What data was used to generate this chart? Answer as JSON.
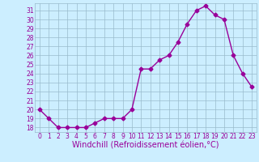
{
  "x": [
    0,
    1,
    2,
    3,
    4,
    5,
    6,
    7,
    8,
    9,
    10,
    11,
    12,
    13,
    14,
    15,
    16,
    17,
    18,
    19,
    20,
    21,
    22,
    23
  ],
  "y": [
    20,
    19,
    18,
    18,
    18,
    18,
    18.5,
    19,
    19,
    19,
    20,
    24.5,
    24.5,
    25.5,
    26,
    27.5,
    29.5,
    31,
    31.5,
    30.5,
    30,
    26,
    24,
    22.5
  ],
  "line_color": "#990099",
  "marker": "D",
  "markersize": 2.5,
  "linewidth": 1.0,
  "xlabel": "Windchill (Refroidissement éolien,°C)",
  "xlabel_fontsize": 7,
  "ytick_labels": [
    "18",
    "19",
    "20",
    "21",
    "22",
    "23",
    "24",
    "25",
    "26",
    "27",
    "28",
    "29",
    "30",
    "31"
  ],
  "ytick_values": [
    18,
    19,
    20,
    21,
    22,
    23,
    24,
    25,
    26,
    27,
    28,
    29,
    30,
    31
  ],
  "ylim": [
    17.5,
    31.8
  ],
  "xlim": [
    -0.5,
    23.5
  ],
  "bg_color": "#cceeff",
  "grid_color": "#99bbcc",
  "tick_color": "#990099",
  "tick_fontsize": 5.5,
  "xlabel_color": "#990099"
}
